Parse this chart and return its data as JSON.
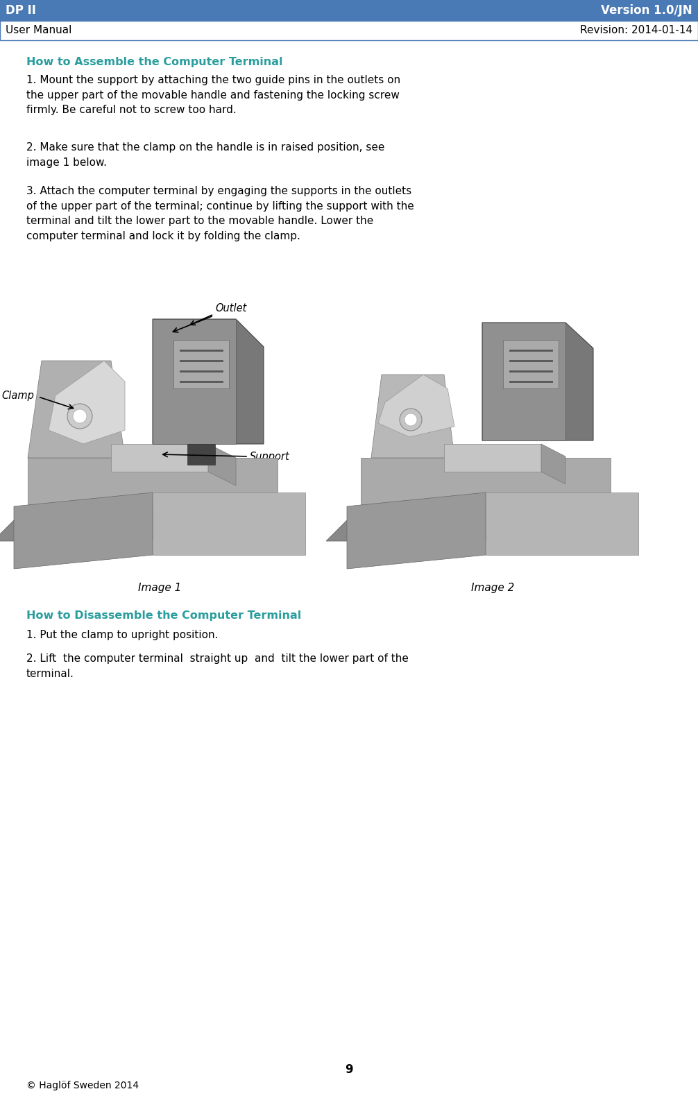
{
  "header_bg_color": "#4a7ab5",
  "header_left_top": "DP II",
  "header_right_top": "Version 1.0/JN",
  "header_left_bottom": "User Manual",
  "header_right_bottom": "Revision: 2014-01-14",
  "header_text_color_top": "#ffffff",
  "header_text_color_bottom": "#000000",
  "section_color": "#2a9d9d",
  "section1_title": "How to Assemble the Computer Terminal",
  "body_text_color": "#000000",
  "para1": "1. Mount the support by attaching the two guide pins in the outlets on\nthe upper part of the movable handle and fastening the locking screw\nfirmly. Be careful not to screw too hard.",
  "para2": "2. Make sure that the clamp on the handle is in raised position, see\nimage 1 below.",
  "para3": "3. Attach the computer terminal by engaging the supports in the outlets\nof the upper part of the terminal; continue by lifting the support with the\nterminal and tilt the lower part to the movable handle. Lower the\ncomputer terminal and lock it by folding the clamp.",
  "label_outlet": "Outlet",
  "label_clamp": "Clamp",
  "label_support": "Support",
  "label_image1": "Image 1",
  "label_image2": "Image 2",
  "section2_title": "How to Disassemble the Computer Terminal",
  "para4": "1. Put the clamp to upright position.",
  "para5": "2. Lift  the computer terminal  straight up  and  tilt the lower part of the\nterminal.",
  "footer_page": "9",
  "footer_copy": "© Haglöf Sweden 2014",
  "bg_color": "#ffffff",
  "border_color": "#4a7ab5"
}
